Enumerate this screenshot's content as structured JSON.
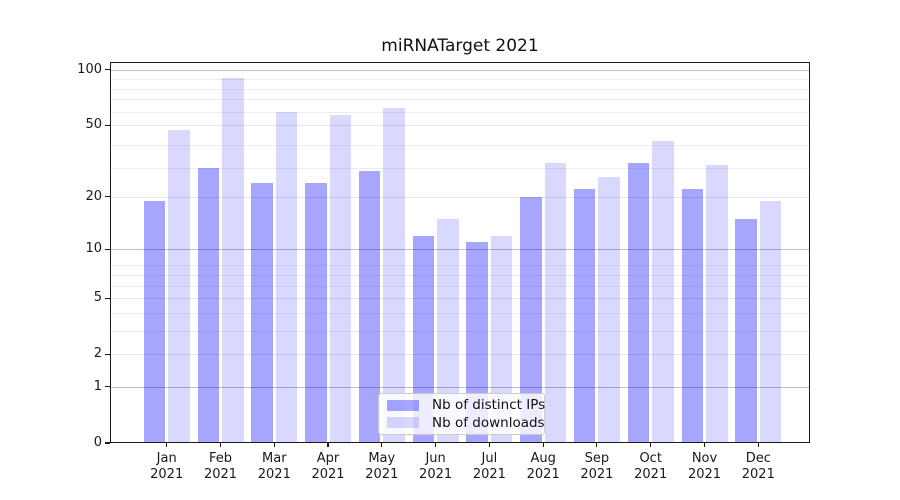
{
  "chart_data": {
    "type": "bar",
    "title": "miRNATarget 2021",
    "categories": [
      "Jan",
      "Feb",
      "Mar",
      "Apr",
      "May",
      "Jun",
      "Jul",
      "Aug",
      "Sep",
      "Oct",
      "Nov",
      "Dec"
    ],
    "year": "2021",
    "series": [
      {
        "name": "Nb of distinct IPs",
        "color": "rgba(0,0,255,0.35)",
        "values": [
          19,
          29,
          24,
          24,
          28,
          12,
          11,
          20,
          22,
          31,
          22,
          15
        ]
      },
      {
        "name": "Nb of downloads",
        "color": "rgba(0,0,255,0.15)",
        "values": [
          47,
          90,
          59,
          57,
          62,
          15,
          12,
          31,
          26,
          41,
          30,
          19
        ]
      }
    ],
    "y_axis": {
      "ticks": [
        0,
        1,
        2,
        5,
        10,
        20,
        50,
        100
      ],
      "scale": "log10(1+x)",
      "range": [
        0,
        110
      ]
    },
    "grid": {
      "which": "both",
      "major_color": "#bdbdbd",
      "minor_color": "#ededed"
    },
    "legend": {
      "position": "lower center"
    }
  }
}
